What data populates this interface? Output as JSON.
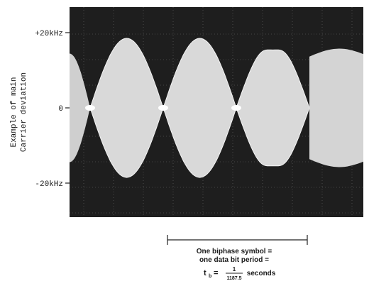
{
  "chart_data": {
    "type": "line",
    "y_axis": {
      "title_line1": "Example of main",
      "title_line2": "Carrier deviation",
      "ticks": [
        {
          "value": 20,
          "label": "+20kHz"
        },
        {
          "value": 0,
          "label": "0"
        },
        {
          "value": -20,
          "label": "-20kHz"
        }
      ],
      "ylim": [
        -28,
        28
      ]
    },
    "envelope_segments": [
      {
        "start": 0.0,
        "end": 1.0,
        "peak": 18.5
      },
      {
        "start": 1.0,
        "end": 2.0,
        "peak": 18.5
      },
      {
        "start": 2.0,
        "end": 3.0,
        "peak": 17.5
      }
    ],
    "bit_period_caption": {
      "line1": "One biphase symbol =",
      "line2": "one data bit period =",
      "formula_prefix": "t",
      "formula_subscript": "b",
      "formula_equals": " = ",
      "formula_numerator": "1",
      "formula_denominator": "1187.5",
      "formula_suffix": " seconds"
    }
  }
}
